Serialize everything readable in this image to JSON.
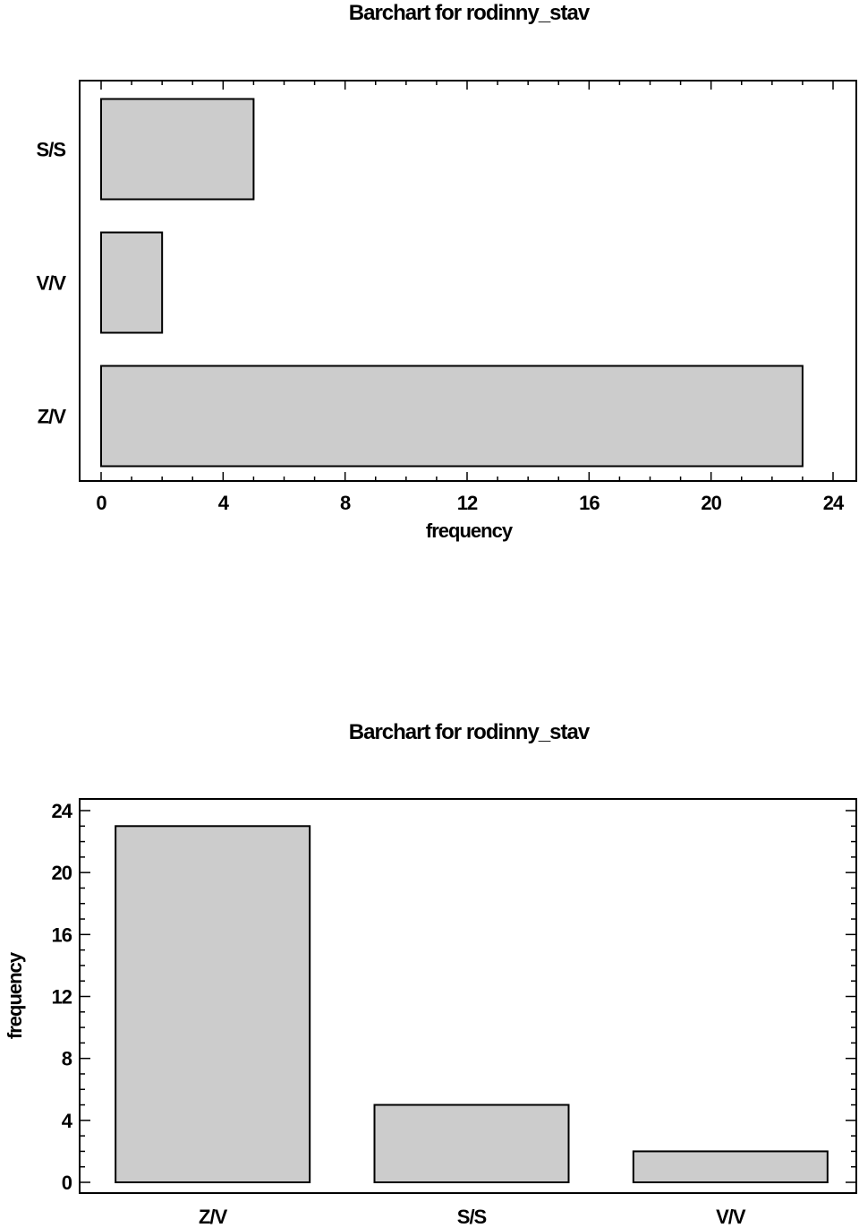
{
  "chart_data": [
    {
      "type": "bar",
      "orientation": "horizontal",
      "title": "Barchart for rodinny_stav",
      "categories": [
        "Z/V",
        "V/V",
        "S/S"
      ],
      "values": [
        23,
        2,
        5
      ],
      "xlabel": "frequency",
      "ylabel": "",
      "xlim": [
        0,
        24
      ],
      "ticks": [
        0,
        4,
        8,
        12,
        16,
        20,
        24
      ],
      "tick_labels": [
        "0",
        "4",
        "8",
        "12",
        "16",
        "20",
        "24"
      ],
      "grid": false,
      "bar_color": "#cccccc"
    },
    {
      "type": "bar",
      "orientation": "vertical",
      "title": "Barchart for rodinny_stav",
      "categories": [
        "Z/V",
        "S/S",
        "V/V"
      ],
      "values": [
        23,
        5,
        2
      ],
      "xlabel": "",
      "ylabel": "frequency",
      "ylim": [
        0,
        24
      ],
      "ticks": [
        0,
        4,
        8,
        12,
        16,
        20,
        24
      ],
      "tick_labels": [
        "0",
        "4",
        "8",
        "12",
        "16",
        "20",
        "24"
      ],
      "grid": false,
      "bar_color": "#cccccc"
    }
  ]
}
